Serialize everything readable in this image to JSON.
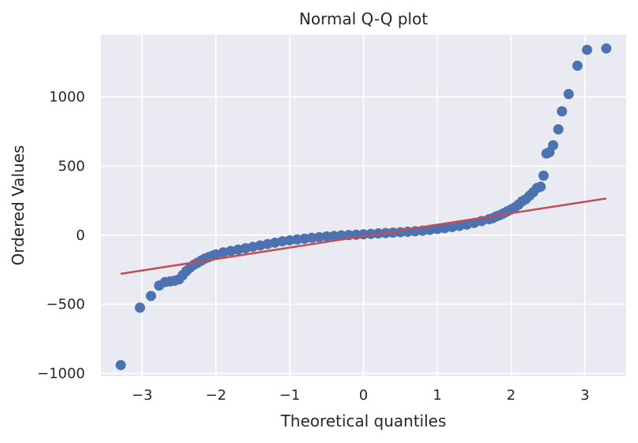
{
  "chart_data": {
    "type": "scatter",
    "title": "Normal Q-Q plot",
    "xlabel": "Theoretical quantiles",
    "ylabel": "Ordered Values",
    "xlim": [
      -3.56,
      3.56
    ],
    "ylim": [
      -1020,
      1450
    ],
    "x_ticks": [
      -3,
      -2,
      -1,
      0,
      1,
      2,
      3
    ],
    "x_tick_labels": [
      "−3",
      "−2",
      "−1",
      "0",
      "1",
      "2",
      "3"
    ],
    "y_ticks": [
      -1000,
      -500,
      0,
      500,
      1000
    ],
    "y_tick_labels": [
      "−1000",
      "−500",
      "0",
      "500",
      "1000"
    ],
    "grid": true,
    "background_color": "#EAEAF2",
    "point_color": "#4C72B0",
    "line_color": "#C44E52",
    "series": [
      {
        "kind": "points",
        "x": [
          -3.29,
          -3.03,
          -2.88,
          -2.77,
          -2.69,
          -2.62,
          -2.56,
          -2.5,
          -2.45,
          -2.4,
          -2.35,
          -2.3,
          -2.25,
          -2.2,
          -2.15,
          -2.1,
          -2.05,
          -2.0,
          -1.9,
          -1.8,
          -1.7,
          -1.6,
          -1.5,
          -1.4,
          -1.3,
          -1.2,
          -1.1,
          -1.0,
          -0.9,
          -0.8,
          -0.7,
          -0.6,
          -0.5,
          -0.4,
          -0.3,
          -0.2,
          -0.1,
          0.0,
          0.1,
          0.2,
          0.3,
          0.4,
          0.5,
          0.6,
          0.7,
          0.8,
          0.9,
          1.0,
          1.1,
          1.2,
          1.3,
          1.4,
          1.5,
          1.6,
          1.7,
          1.75,
          1.8,
          1.85,
          1.9,
          1.95,
          2.0,
          2.05,
          2.1,
          2.15,
          2.2,
          2.25,
          2.3,
          2.35,
          2.4,
          2.44,
          2.48,
          2.52,
          2.57,
          2.64,
          2.69,
          2.78,
          2.9,
          3.03,
          3.29
        ],
        "y": [
          -940,
          -525,
          -440,
          -365,
          -340,
          -335,
          -330,
          -320,
          -290,
          -260,
          -235,
          -215,
          -200,
          -185,
          -170,
          -160,
          -150,
          -140,
          -125,
          -115,
          -105,
          -95,
          -85,
          -75,
          -65,
          -55,
          -45,
          -38,
          -32,
          -26,
          -20,
          -15,
          -10,
          -6,
          -3,
          0,
          3,
          6,
          9,
          12,
          15,
          18,
          21,
          24,
          28,
          32,
          38,
          44,
          50,
          58,
          66,
          76,
          88,
          102,
          115,
          122,
          135,
          145,
          158,
          172,
          185,
          200,
          220,
          245,
          260,
          285,
          310,
          340,
          350,
          430,
          590,
          600,
          650,
          765,
          895,
          1020,
          1225,
          1340,
          1350
        ]
      },
      {
        "kind": "fit-line",
        "x": [
          -3.29,
          3.29
        ],
        "y": [
          -280,
          265
        ]
      }
    ]
  }
}
